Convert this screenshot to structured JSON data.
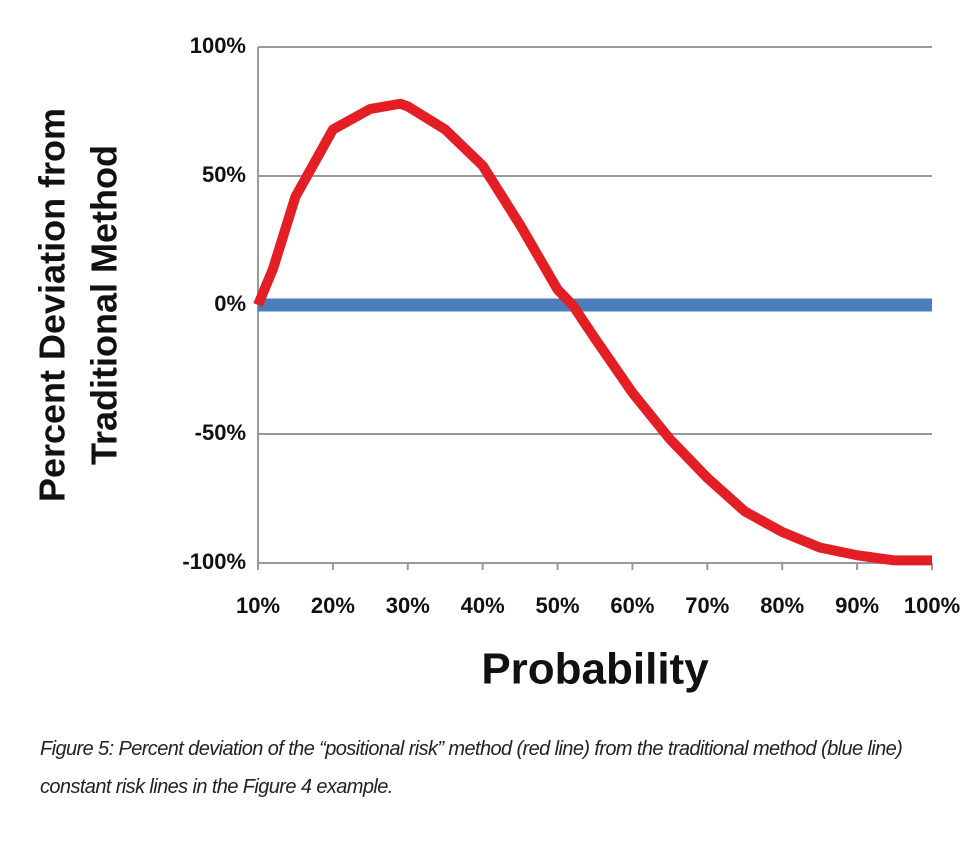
{
  "chart_data": {
    "type": "line",
    "ylabel": [
      "Percent Deviation from",
      "Traditional Method"
    ],
    "xlabel": "Probability",
    "xlim": [
      10,
      100
    ],
    "xticks": [
      {
        "value": 10,
        "label": "10%"
      },
      {
        "value": 20,
        "label": "20%"
      },
      {
        "value": 30,
        "label": "30%"
      },
      {
        "value": 40,
        "label": "40%"
      },
      {
        "value": 50,
        "label": "50%"
      },
      {
        "value": 60,
        "label": "60%"
      },
      {
        "value": 70,
        "label": "70%"
      },
      {
        "value": 80,
        "label": "80%"
      },
      {
        "value": 90,
        "label": "90%"
      },
      {
        "value": 100,
        "label": "100%"
      }
    ],
    "ylim": [
      -100,
      100
    ],
    "yticks": [
      {
        "value": -100,
        "label": "-100%"
      },
      {
        "value": -50,
        "label": "-50%"
      },
      {
        "value": 0,
        "label": "0%"
      },
      {
        "value": 50,
        "label": "50%"
      },
      {
        "value": 100,
        "label": "100%"
      }
    ],
    "grid": true,
    "series": [
      {
        "color": "#4a7ebb",
        "x": [
          10,
          100
        ],
        "values": [
          0,
          0
        ]
      },
      {
        "color": "#e31e24",
        "x": [
          10,
          12,
          15,
          20,
          25,
          29,
          30,
          35,
          40,
          45,
          50,
          52,
          55,
          60,
          65,
          70,
          75,
          80,
          85,
          90,
          95,
          100
        ],
        "values": [
          0,
          14,
          42,
          68,
          76,
          78,
          77,
          68,
          54,
          31,
          6,
          0,
          -13,
          -34,
          -52,
          -67,
          -80,
          -88,
          -94,
          -97,
          -99,
          -99
        ]
      }
    ]
  },
  "caption": "Figure 5: Percent deviation of the “positional risk” method (red line) from the traditional method (blue line) constant risk lines in the Figure 4 example."
}
